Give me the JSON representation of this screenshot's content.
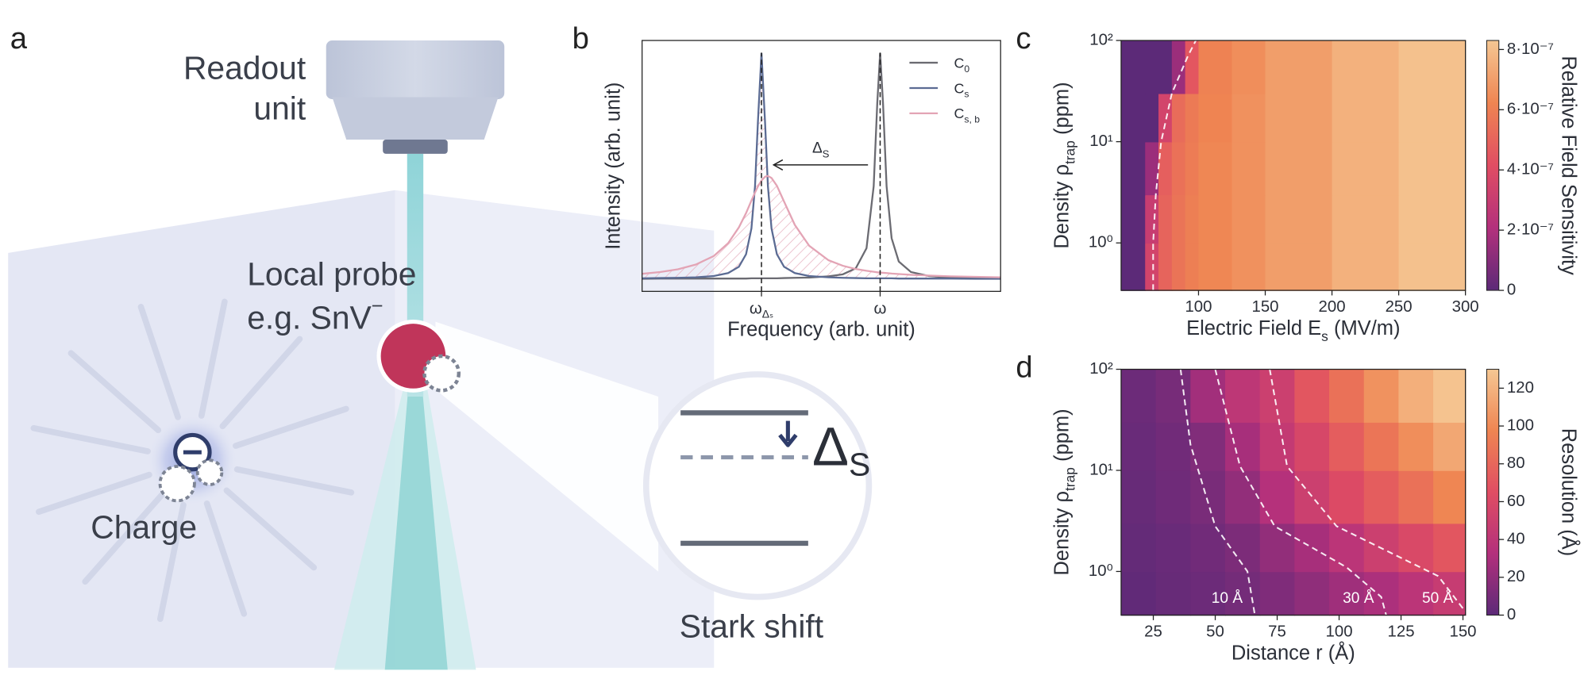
{
  "panel_a": {
    "label": "a",
    "readout": [
      "Readout",
      "unit"
    ],
    "probe": {
      "line1": "Local probe",
      "line2": "e.g. SnV",
      "sup": "−"
    },
    "charge": "Charge",
    "stark": {
      "title": "Stark shift",
      "symbol": "Δ",
      "sub": "S"
    }
  },
  "chart_data": [
    {
      "type": "line",
      "panel": "b",
      "xlabel": "Frequency (arb. unit)",
      "ylabel": "Intensity (arb. unit)",
      "xlim": [
        0,
        100
      ],
      "ylim": [
        0,
        100
      ],
      "xticks": [
        {
          "value": 33.3,
          "label": {
            "text": "ω",
            "sub": "Δₛ"
          }
        },
        {
          "value": 66.4,
          "label": "ω"
        }
      ],
      "annotation": {
        "text": "Δ",
        "sub": "S"
      },
      "legend": "upper right",
      "x": [
        0,
        5,
        10,
        15,
        20,
        24,
        27,
        29,
        30.5,
        31.5,
        32.3,
        33.3,
        34.3,
        35.1,
        36.1,
        37.6,
        39.6,
        42.6,
        46.6,
        52,
        56,
        59.6,
        62.6,
        64.6,
        65.6,
        66.4,
        67.2,
        68.2,
        69.6,
        71.6,
        75,
        80,
        86,
        93,
        100
      ],
      "series": [
        {
          "name": {
            "text": "C",
            "sub": "0"
          },
          "color": "#6b6b72",
          "values": [
            5.0,
            5.1,
            5.1,
            5.1,
            5.1,
            5.1,
            5.1,
            5.1,
            5.2,
            5.2,
            5.2,
            5.2,
            5.2,
            5.2,
            5.2,
            5.2,
            5.3,
            5.4,
            5.5,
            6.0,
            6.8,
            9.2,
            17.2,
            41.9,
            75.1,
            95,
            75.1,
            41.9,
            21.2,
            11.9,
            7.7,
            6.1,
            5.5,
            5.3,
            5.2
          ]
        },
        {
          "name": {
            "text": "C",
            "sub": "s"
          },
          "color": "#5b6b93",
          "values": [
            5.2,
            5.3,
            5.4,
            5.6,
            6.1,
            7.3,
            9.8,
            14.8,
            25.1,
            41.9,
            67.3,
            95,
            67.3,
            41.9,
            25.1,
            14.8,
            9.8,
            7.3,
            6.1,
            5.6,
            5.4,
            5.3,
            5.2,
            5.2,
            5.2,
            5.2,
            5.2,
            5.2,
            5.2,
            5.1,
            5.1,
            5.1,
            5.1,
            5.0,
            5.0
          ]
        },
        {
          "name": {
            "text": "C",
            "sub": "s, b"
          },
          "color": "#e3a4b5",
          "hatch": true,
          "values": [
            7.0,
            7.7,
            8.8,
            10.7,
            14.1,
            19.2,
            25.5,
            31.2,
            36.2,
            39.4,
            41.8,
            44.2,
            45.7,
            46.0,
            45.2,
            42.1,
            35.8,
            26.5,
            18.2,
            12.4,
            10.2,
            8.9,
            8.2,
            7.8,
            7.6,
            7.5,
            7.4,
            7.3,
            7.1,
            6.9,
            6.6,
            6.3,
            6.0,
            5.8,
            5.6
          ]
        }
      ]
    },
    {
      "type": "heatmap",
      "panel": "c",
      "xlabel": {
        "text": "Electric Field E",
        "sub": "s",
        "tail": "(MV/m)"
      },
      "ylabel": {
        "text": "Density ρ",
        "sub": "trap",
        "tail": "(ppm)"
      },
      "colorbar_label": "Relative Field Sensitivity",
      "xlim": [
        42,
        300
      ],
      "ylim": [
        0.34,
        100
      ],
      "ylog": true,
      "xticks": [
        100,
        150,
        200,
        250,
        300
      ],
      "yticks": [
        {
          "value": 1,
          "label": "10⁰"
        },
        {
          "value": 10,
          "label": "10¹"
        },
        {
          "value": 100,
          "label": "10²"
        }
      ],
      "clim": [
        0,
        8.3e-07
      ],
      "cticks": [
        0,
        {
          "value": 2e-07,
          "label": "2·10⁻⁷"
        },
        {
          "value": 4e-07,
          "label": "4·10⁻⁷"
        },
        {
          "value": 6e-07,
          "label": "6·10⁻⁷"
        },
        {
          "value": 8e-07,
          "label": "8·10⁻⁷"
        }
      ],
      "cmap": [
        "#5c2a78",
        "#b3307c",
        "#e04d63",
        "#ef8552",
        "#f5c793"
      ],
      "xbins": [
        42,
        60,
        70,
        80,
        90,
        100,
        125,
        150,
        200,
        250,
        300
      ],
      "ybins": [
        0.34,
        1,
        3,
        10,
        30,
        100
      ],
      "z": [
        [
          0,
          3.5e-07,
          5e-07,
          5.6e-07,
          6e-07,
          6.3e-07,
          6.6e-07,
          7e-07,
          7.6e-07,
          8.1e-07
        ],
        [
          0,
          3e-07,
          5e-07,
          5.6e-07,
          6e-07,
          6.3e-07,
          6.6e-07,
          7e-07,
          7.6e-07,
          8.1e-07
        ],
        [
          0,
          1.5e-07,
          4.8e-07,
          5.5e-07,
          5.9e-07,
          6.3e-07,
          6.6e-07,
          7e-07,
          7.6e-07,
          8.1e-07
        ],
        [
          0,
          0,
          3.5e-07,
          5.3e-07,
          5.8e-07,
          6.2e-07,
          6.6e-07,
          7e-07,
          7.6e-07,
          8.1e-07
        ],
        [
          0,
          0,
          0,
          1.5e-07,
          4.5e-07,
          6.1e-07,
          6.5e-07,
          7e-07,
          7.6e-07,
          8.1e-07
        ]
      ],
      "contours": [
        {
          "x": [
            66,
            66,
            68,
            72,
            80,
            92,
            98
          ],
          "y": [
            0.34,
            1,
            3,
            10,
            30,
            70,
            100
          ]
        }
      ]
    },
    {
      "type": "heatmap",
      "panel": "d",
      "xlabel": "Distance r (Å)",
      "ylabel": {
        "text": "Density ρ",
        "sub": "trap",
        "tail": "(ppm)"
      },
      "colorbar_label": "Resolution (Å)",
      "xlim": [
        12,
        151
      ],
      "ylim": [
        0.37,
        100
      ],
      "ylog": true,
      "xticks": [
        25,
        50,
        75,
        100,
        125,
        150
      ],
      "yticks": [
        {
          "value": 1,
          "label": "10⁰"
        },
        {
          "value": 10,
          "label": "10¹"
        },
        {
          "value": 100,
          "label": "10²"
        }
      ],
      "clim": [
        0,
        130
      ],
      "cticks": [
        0,
        20,
        40,
        60,
        80,
        100,
        120
      ],
      "cmap": [
        "#5c2a78",
        "#b3307c",
        "#e04d63",
        "#ef8552",
        "#f5c793"
      ],
      "xbins": [
        12,
        26,
        40,
        54,
        68,
        82,
        96,
        110,
        124,
        138,
        151
      ],
      "ybins": [
        0.37,
        1,
        3,
        10,
        30,
        100
      ],
      "z": [
        [
          2,
          4,
          6,
          9,
          13,
          19,
          25,
          30,
          38,
          46
        ],
        [
          3,
          5,
          8,
          12,
          20,
          28,
          38,
          50,
          60,
          70
        ],
        [
          4,
          7,
          11,
          20,
          34,
          50,
          62,
          74,
          86,
          98
        ],
        [
          5,
          8,
          14,
          28,
          44,
          58,
          74,
          88,
          102,
          114
        ],
        [
          6,
          10,
          26,
          40,
          50,
          70,
          86,
          104,
          118,
          128
        ]
      ],
      "contours": [
        {
          "label": "10 Å",
          "x": [
            36,
            40,
            50,
            63,
            66
          ],
          "y": [
            100,
            18,
            2.8,
            1,
            0.37
          ]
        },
        {
          "label": "30 Å",
          "x": [
            50,
            60,
            74,
            103,
            117,
            119
          ],
          "y": [
            100,
            11,
            2.8,
            1.1,
            0.56,
            0.37
          ]
        },
        {
          "label": "50 Å",
          "x": [
            72,
            79,
            99,
            140,
            151
          ],
          "y": [
            100,
            11,
            2.8,
            0.9,
            0.4
          ]
        }
      ]
    }
  ]
}
